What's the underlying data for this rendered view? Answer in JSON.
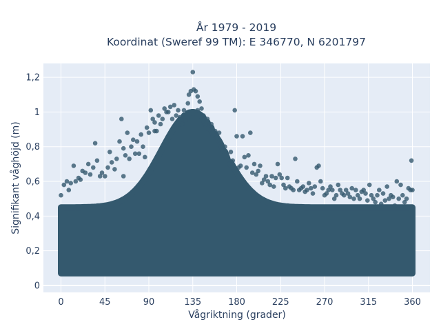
{
  "chart_data": {
    "type": "scatter",
    "title": [
      "År 1979 - 2019",
      "Koordinat (Sweref 99 TM): E 346770, N 6201797"
    ],
    "xlabel": "Vågriktning (grader)",
    "ylabel": "Signifikant våghöjd (m)",
    "xlim": [
      -18,
      378
    ],
    "ylim": [
      -0.04,
      1.28
    ],
    "x_ticks": [
      0,
      45,
      90,
      135,
      180,
      225,
      270,
      315,
      360
    ],
    "x_tick_labels": [
      "0",
      "45",
      "90",
      "135",
      "180",
      "225",
      "270",
      "315",
      "360"
    ],
    "y_ticks": [
      0,
      0.2,
      0.4,
      0.6,
      0.8,
      1,
      1.2
    ],
    "y_tick_labels": [
      "0",
      "0,2",
      "0,4",
      "0,6",
      "0,8",
      "1",
      "1,2"
    ],
    "grid": true,
    "marker_color": "#34596e",
    "plot_bg": "#e5ecf6",
    "series": [
      {
        "points": [
          [
            0,
            0.52
          ],
          [
            3,
            0.58
          ],
          [
            6,
            0.6
          ],
          [
            8,
            0.55
          ],
          [
            10,
            0.59
          ],
          [
            13,
            0.69
          ],
          [
            15,
            0.6
          ],
          [
            18,
            0.62
          ],
          [
            20,
            0.61
          ],
          [
            22,
            0.66
          ],
          [
            25,
            0.65
          ],
          [
            28,
            0.7
          ],
          [
            30,
            0.64
          ],
          [
            33,
            0.68
          ],
          [
            35,
            0.82
          ],
          [
            37,
            0.72
          ],
          [
            40,
            0.63
          ],
          [
            42,
            0.65
          ],
          [
            45,
            0.63
          ],
          [
            48,
            0.68
          ],
          [
            50,
            0.77
          ],
          [
            52,
            0.71
          ],
          [
            55,
            0.67
          ],
          [
            57,
            0.73
          ],
          [
            60,
            0.83
          ],
          [
            62,
            0.96
          ],
          [
            64,
            0.79
          ],
          [
            66,
            0.75
          ],
          [
            68,
            0.88
          ],
          [
            70,
            0.73
          ],
          [
            72,
            0.8
          ],
          [
            74,
            0.84
          ],
          [
            76,
            0.76
          ],
          [
            78,
            0.83
          ],
          [
            80,
            0.76
          ],
          [
            82,
            0.87
          ],
          [
            84,
            0.8
          ],
          [
            86,
            0.74
          ],
          [
            88,
            0.91
          ],
          [
            90,
            0.88
          ],
          [
            92,
            1.01
          ],
          [
            94,
            0.96
          ],
          [
            96,
            0.94
          ],
          [
            98,
            0.89
          ],
          [
            100,
            0.98
          ],
          [
            102,
            0.93
          ],
          [
            104,
            0.96
          ],
          [
            106,
            1.02
          ],
          [
            108,
            1.0
          ],
          [
            110,
            1.0
          ],
          [
            112,
            1.03
          ],
          [
            114,
            0.96
          ],
          [
            116,
            1.04
          ],
          [
            118,
            0.98
          ],
          [
            120,
            1.01
          ],
          [
            122,
            0.97
          ],
          [
            124,
            0.93
          ],
          [
            126,
            1.01
          ],
          [
            128,
            0.95
          ],
          [
            130,
            1.05
          ],
          [
            131,
            1.1
          ],
          [
            133,
            1.12
          ],
          [
            135,
            1.23
          ],
          [
            136,
            1.13
          ],
          [
            138,
            1.12
          ],
          [
            140,
            1.09
          ],
          [
            142,
            1.06
          ],
          [
            144,
            1.02
          ],
          [
            146,
            0.98
          ],
          [
            148,
            0.93
          ],
          [
            150,
            0.96
          ],
          [
            152,
            0.9
          ],
          [
            154,
            0.93
          ],
          [
            156,
            0.87
          ],
          [
            158,
            0.89
          ],
          [
            160,
            0.85
          ],
          [
            162,
            0.88
          ],
          [
            164,
            0.82
          ],
          [
            166,
            0.78
          ],
          [
            168,
            0.8
          ],
          [
            170,
            0.74
          ],
          [
            172,
            0.7
          ],
          [
            174,
            0.77
          ],
          [
            176,
            0.72
          ],
          [
            178,
            1.01
          ],
          [
            180,
            0.86
          ],
          [
            182,
            0.68
          ],
          [
            184,
            0.69
          ],
          [
            186,
            0.86
          ],
          [
            188,
            0.74
          ],
          [
            190,
            0.68
          ],
          [
            192,
            0.75
          ],
          [
            194,
            0.88
          ],
          [
            196,
            0.65
          ],
          [
            198,
            0.7
          ],
          [
            200,
            0.64
          ],
          [
            202,
            0.66
          ],
          [
            204,
            0.69
          ],
          [
            206,
            0.59
          ],
          [
            208,
            0.61
          ],
          [
            210,
            0.63
          ],
          [
            212,
            0.6
          ],
          [
            214,
            0.58
          ],
          [
            216,
            0.63
          ],
          [
            218,
            0.57
          ],
          [
            220,
            0.62
          ],
          [
            222,
            0.7
          ],
          [
            224,
            0.64
          ],
          [
            226,
            0.62
          ],
          [
            228,
            0.58
          ],
          [
            230,
            0.56
          ],
          [
            232,
            0.62
          ],
          [
            234,
            0.57
          ],
          [
            236,
            0.56
          ],
          [
            238,
            0.55
          ],
          [
            240,
            0.73
          ],
          [
            242,
            0.6
          ],
          [
            244,
            0.55
          ],
          [
            246,
            0.56
          ],
          [
            248,
            0.57
          ],
          [
            250,
            0.54
          ],
          [
            252,
            0.55
          ],
          [
            254,
            0.59
          ],
          [
            256,
            0.56
          ],
          [
            258,
            0.53
          ],
          [
            260,
            0.57
          ],
          [
            262,
            0.68
          ],
          [
            264,
            0.69
          ],
          [
            266,
            0.6
          ],
          [
            268,
            0.56
          ],
          [
            270,
            0.52
          ],
          [
            272,
            0.53
          ],
          [
            274,
            0.55
          ],
          [
            276,
            0.57
          ],
          [
            278,
            0.55
          ],
          [
            280,
            0.5
          ],
          [
            282,
            0.52
          ],
          [
            284,
            0.58
          ],
          [
            286,
            0.55
          ],
          [
            288,
            0.53
          ],
          [
            290,
            0.52
          ],
          [
            292,
            0.55
          ],
          [
            294,
            0.53
          ],
          [
            296,
            0.51
          ],
          [
            298,
            0.56
          ],
          [
            300,
            0.5
          ],
          [
            302,
            0.55
          ],
          [
            304,
            0.52
          ],
          [
            306,
            0.5
          ],
          [
            308,
            0.54
          ],
          [
            310,
            0.55
          ],
          [
            312,
            0.53
          ],
          [
            314,
            0.49
          ],
          [
            316,
            0.58
          ],
          [
            318,
            0.52
          ],
          [
            320,
            0.5
          ],
          [
            322,
            0.48
          ],
          [
            324,
            0.52
          ],
          [
            326,
            0.55
          ],
          [
            328,
            0.47
          ],
          [
            330,
            0.53
          ],
          [
            332,
            0.49
          ],
          [
            334,
            0.57
          ],
          [
            336,
            0.5
          ],
          [
            338,
            0.52
          ],
          [
            340,
            0.51
          ],
          [
            342,
            0.46
          ],
          [
            344,
            0.6
          ],
          [
            346,
            0.5
          ],
          [
            348,
            0.58
          ],
          [
            350,
            0.52
          ],
          [
            352,
            0.48
          ],
          [
            354,
            0.5
          ],
          [
            356,
            0.56
          ],
          [
            358,
            0.55
          ],
          [
            359,
            0.72
          ],
          [
            360,
            0.55
          ],
          [
            64,
            0.63
          ],
          [
            96,
            0.89
          ],
          [
            140,
            1.01
          ]
        ]
      }
    ]
  }
}
